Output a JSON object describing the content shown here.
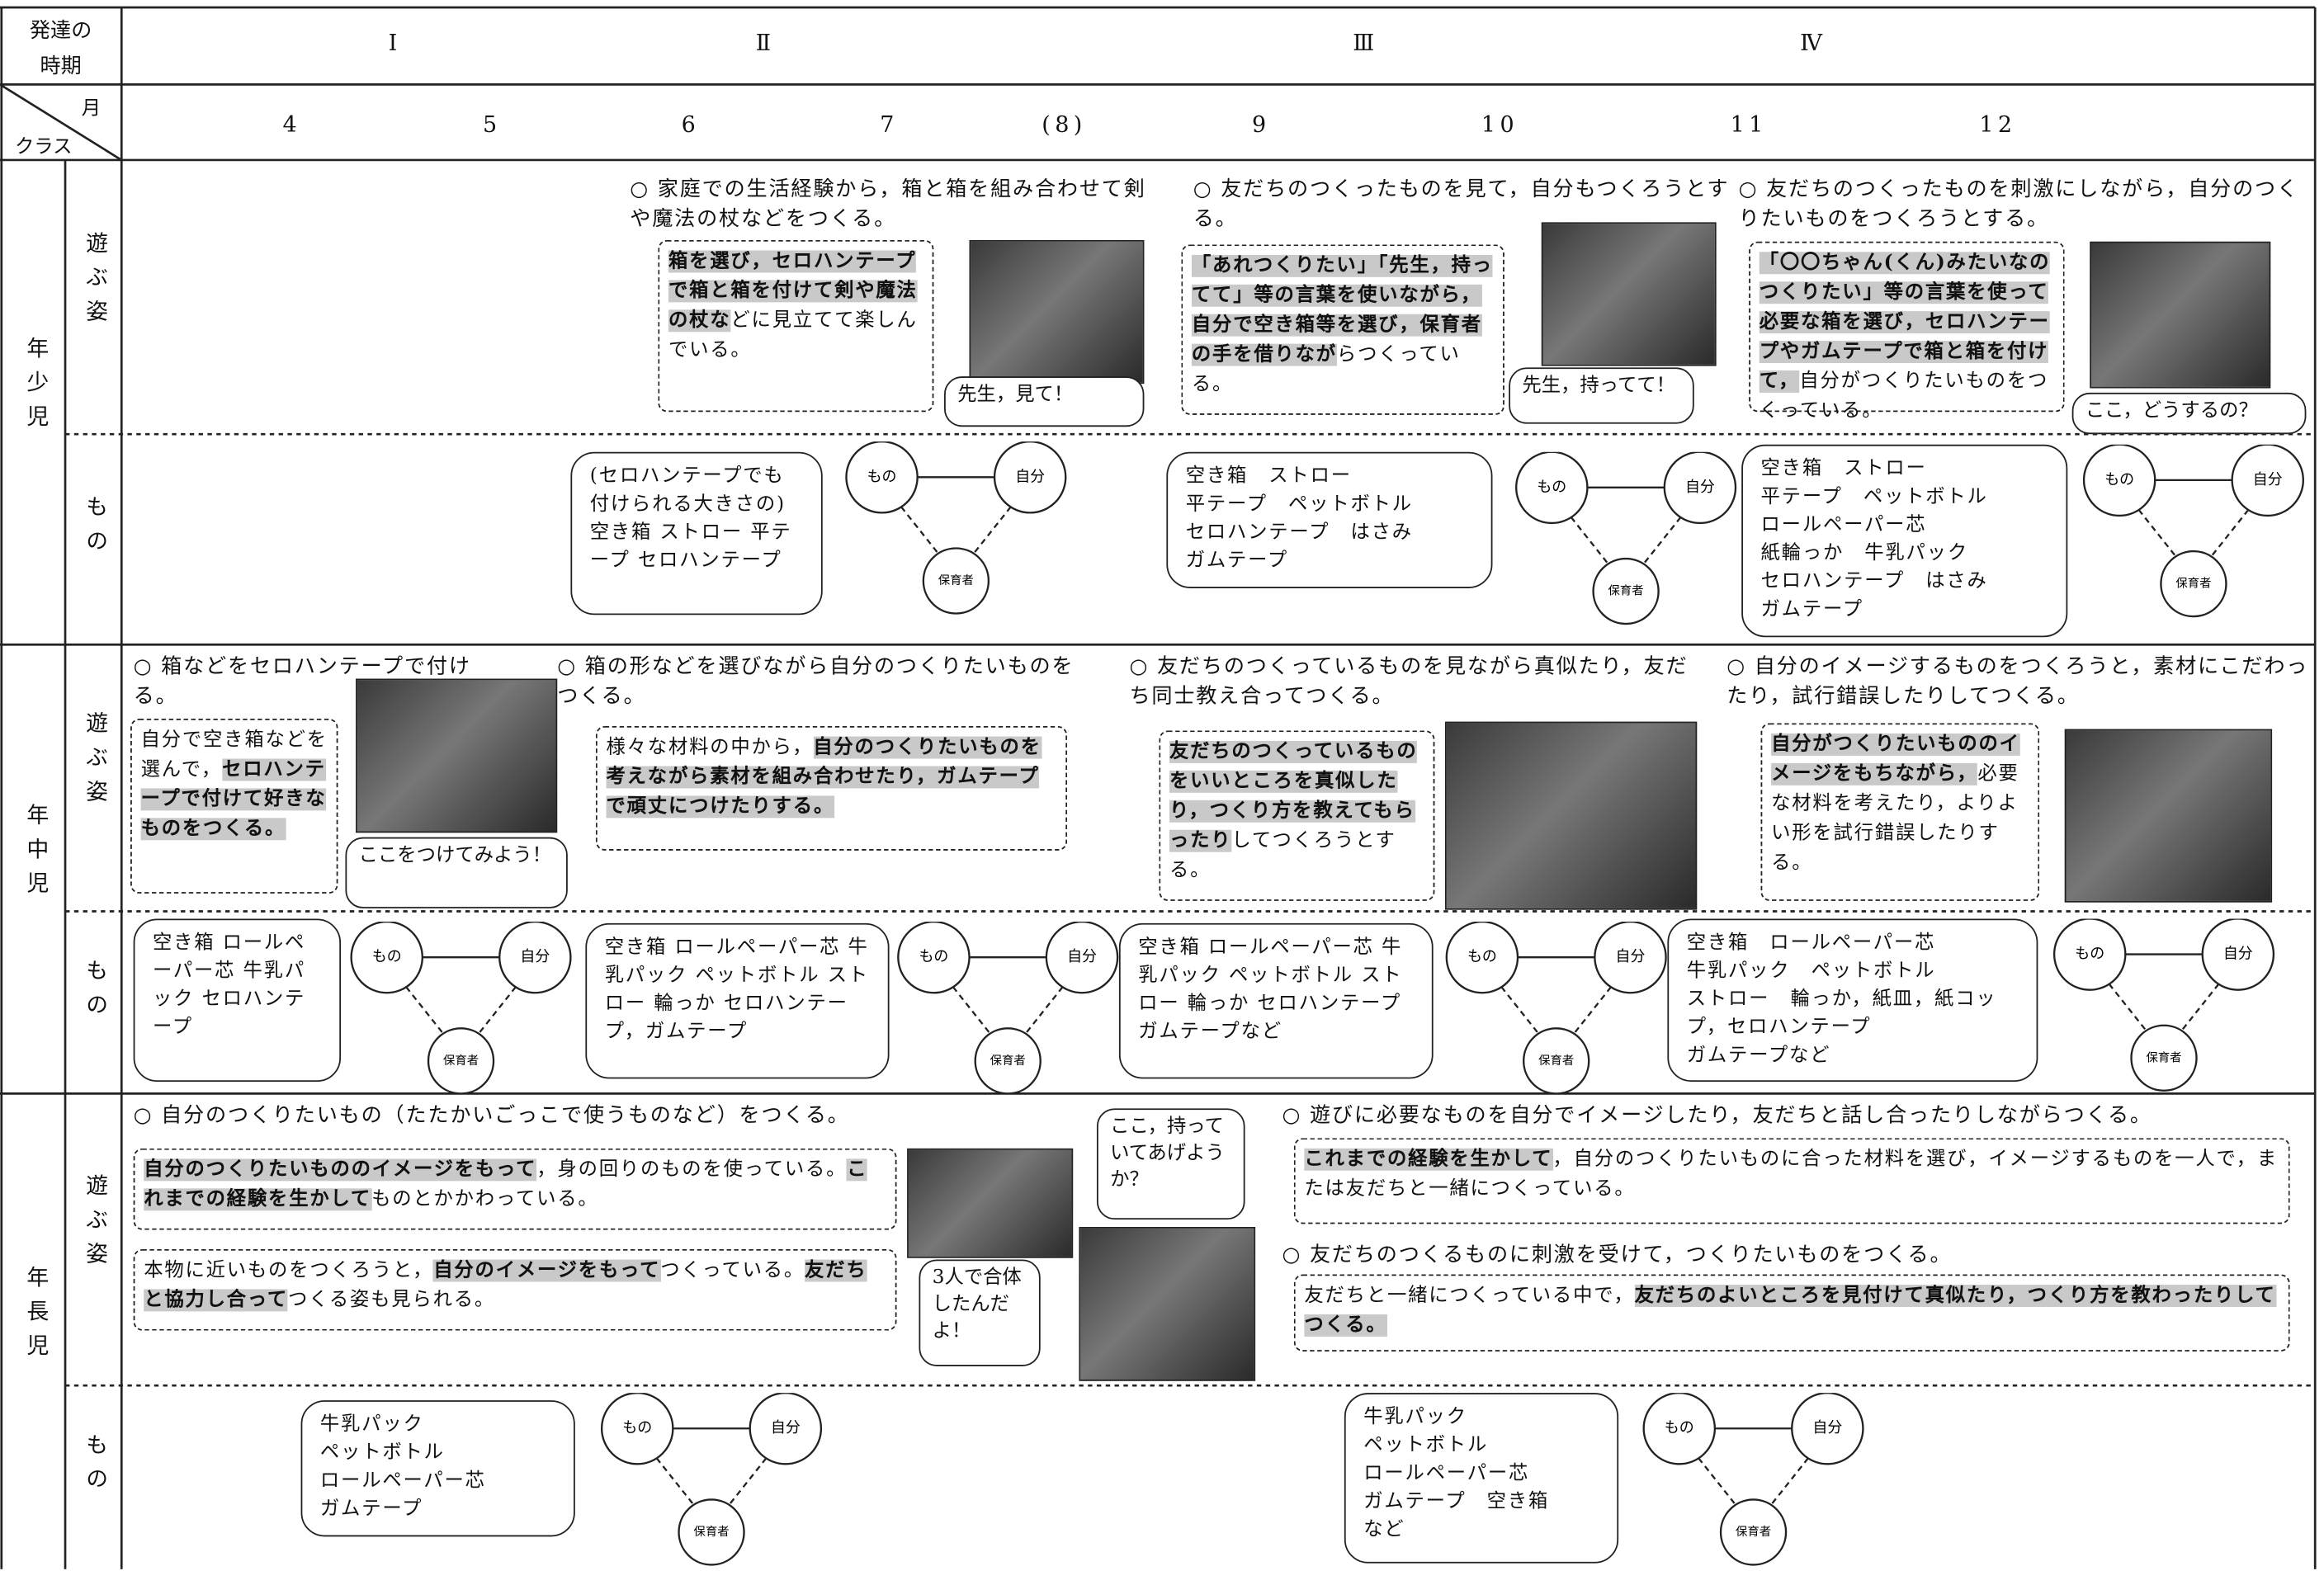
{
  "header": {
    "period_label": [
      "発達の",
      "時期"
    ],
    "periods": [
      "Ⅰ",
      "Ⅱ",
      "Ⅲ",
      "Ⅳ"
    ],
    "month_label": "月",
    "class_label": "クラス",
    "months": [
      "4",
      "5",
      "6",
      "7",
      "(8)",
      "9",
      "10",
      "11",
      "12"
    ]
  },
  "diagram_labels": {
    "thing": "もの",
    "self": "自分",
    "teacher": "保育者"
  },
  "sections": [
    {
      "class": "年少児",
      "sub_labels": [
        "遊ぶ姿",
        "もの"
      ],
      "goals": [
        "○ 家庭での生活経験から，箱と箱を組み合わせて剣や魔法の杖などをつくる。",
        "○ 友だちのつくったものを見て，自分もつくろうとする。",
        "○ 友だちのつくったものを刺激にしながら，自分のつくりたいものをつくろうとする。"
      ],
      "descriptions": [
        [
          {
            "text": "箱を選び，セロハンテープで箱と箱を付けて剣や魔法の杖な",
            "highlight": true
          },
          {
            "text": "どに見立てて楽しんでいる。",
            "highlight": false
          }
        ],
        [
          {
            "text": "「あれつくりたい」「先生，持ってて」等の言葉を使いながら，自分で空き箱等を選び，保育者の手を借りなが",
            "highlight": true
          },
          {
            "text": "らつくっている。",
            "highlight": false
          }
        ],
        [
          {
            "text": "「〇〇ちゃん(くん)みたいなのつくりたい」等の言葉を使って必要な箱を選び，セロハンテープやガムテープで箱と箱を付けて，",
            "highlight": true
          },
          {
            "text": "自分がつくりたいものをつくっている。",
            "highlight": false
          }
        ]
      ],
      "bubbles": [
        "先生，見て！",
        "先生，持ってて！",
        "ここ，どうするの？"
      ],
      "materials": [
        "(セロハンテープでも付けられる大きさの)空き箱 ストロー 平テープ セロハンテープ",
        "空き箱　ストロー\n平テープ　ペットボトル\nセロハンテープ　はさみ\nガムテープ",
        "空き箱　ストロー\n平テープ　ペットボトル\nロールペーパー芯\n紙輪っか　牛乳パック\nセロハンテープ　はさみ\nガムテープ"
      ]
    },
    {
      "class": "年中児",
      "sub_labels": [
        "遊ぶ姿",
        "もの"
      ],
      "goals": [
        "○ 箱などをセロハンテープで付ける。",
        "○ 箱の形などを選びながら自分のつくりたいものをつくる。",
        "○ 友だちのつくっているものを見ながら真似たり，友だち同士教え合ってつくる。",
        "○ 自分のイメージするものをつくろうと，素材にこだわったり，試行錯誤したりしてつくる。"
      ],
      "descriptions": [
        [
          {
            "text": "自分で空き箱などを選んで，",
            "highlight": false
          },
          {
            "text": "セロハンテープで付けて好きなものをつくる。",
            "highlight": true
          }
        ],
        [
          {
            "text": "様々な材料の中から，",
            "highlight": false
          },
          {
            "text": "自分のつくりたいものを考えながら素材を組み合わせたり，ガムテープで頑丈につけたりする。",
            "highlight": true
          }
        ],
        [
          {
            "text": "友だちのつくっているものをいいところを真似したり，つくり方を教えてもらったり",
            "highlight": true
          },
          {
            "text": "してつくろうとする。",
            "highlight": false
          }
        ],
        [
          {
            "text": "自分がつくりたいもののイメージをもちながら，",
            "highlight": true
          },
          {
            "text": "必要な材料を考えたり，よりよい形を試行錯誤したりする。",
            "highlight": false
          }
        ]
      ],
      "bubbles": [
        "ここをつけてみよう！"
      ],
      "materials": [
        "空き箱 ロールペーパー芯 牛乳パック セロハンテープ",
        "空き箱 ロールペーパー芯 牛乳パック ペットボトル ストロー 輪っか セロハンテープ，ガムテープ",
        "空き箱 ロールペーパー芯 牛乳パック ペットボトル ストロー 輪っか セロハンテープ ガムテープなど",
        "空き箱　ロールペーパー芯\n牛乳パック　ペットボトル\nストロー　輪っか，紙皿，紙コップ，セロハンテープ\nガムテープなど"
      ]
    },
    {
      "class": "年長児",
      "sub_labels": [
        "遊ぶ姿",
        "もの"
      ],
      "goals": [
        "○ 自分のつくりたいもの（たたかいごっこで使うものなど）をつくる。",
        "○ 遊びに必要なものを自分でイメージしたり，友だちと話し合ったりしながらつくる。",
        "○ 友だちのつくるものに刺激を受けて，つくりたいものをつくる。"
      ],
      "descriptions": [
        [
          {
            "text": "自分のつくりたいもののイメージをもって",
            "highlight": true
          },
          {
            "text": "，身の回りのものを使っている。",
            "highlight": false
          },
          {
            "text": "これまでの経験を生かして",
            "highlight": true
          },
          {
            "text": "ものとかかわっている。",
            "highlight": false
          }
        ],
        [
          {
            "text": "本物に近いものをつくろうと，",
            "highlight": false
          },
          {
            "text": "自分のイメージをもって",
            "highlight": true
          },
          {
            "text": "つくっている。",
            "highlight": false
          },
          {
            "text": "友だちと協力し合って",
            "highlight": true
          },
          {
            "text": "つくる姿も見られる。",
            "highlight": false
          }
        ],
        [
          {
            "text": "これまでの経験を生かして",
            "highlight": true
          },
          {
            "text": "，自分のつくりたいものに合った材料を選び，イメージするものを一人で，または友だちと一緒につくっている。",
            "highlight": false
          }
        ],
        [
          {
            "text": "友だちと一緒につくっている中で，",
            "highlight": false
          },
          {
            "text": "友だちのよいところを見付けて真似たり，つくり方を教わったりしてつくる。",
            "highlight": true
          }
        ]
      ],
      "bubbles": [
        "3人で合体したんだよ！",
        "ここ，持っていてあげようか？"
      ],
      "materials": [
        "牛乳パック\nペットボトル\nロールペーパー芯\nガムテープ",
        "牛乳パック\nペットボトル\nロールペーパー芯\nガムテープ　空き箱\nなど"
      ]
    }
  ]
}
